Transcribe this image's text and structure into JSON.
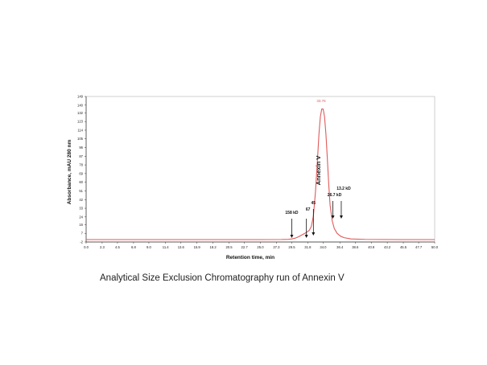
{
  "caption": "Analytical Size Exclusion Chromatography run of Annexin V",
  "chart_data": {
    "type": "line",
    "title": "",
    "xlabel": "Retention time, min",
    "ylabel": "Absorbance, mAU 280 nm",
    "xlim": [
      0.0,
      50.0
    ],
    "ylim": [
      -2,
      149
    ],
    "x_tick_labels": [
      "0.0",
      "2.3",
      "4.5",
      "6.8",
      "9.0",
      "11.4",
      "13.6",
      "15.9",
      "18.2",
      "20.5",
      "22.7",
      "25.0",
      "27.3",
      "29.5",
      "31.8",
      "34.0",
      "36.4",
      "38.6",
      "40.9",
      "43.2",
      "45.5",
      "47.7",
      "50.0"
    ],
    "y_tick_labels": [
      "-2",
      "7",
      "16",
      "24",
      "33",
      "42",
      "51",
      "60",
      "69",
      "78",
      "87",
      "96",
      "105",
      "114",
      "123",
      "132",
      "140",
      "149"
    ],
    "series": [
      {
        "color": "#e05a5a",
        "x": [
          0,
          5,
          10,
          15,
          20,
          25,
          28,
          29,
          29.5,
          30,
          30.5,
          31,
          31.5,
          32,
          32.3,
          32.6,
          32.9,
          33.2,
          33.4,
          33.6,
          33.8,
          34.0,
          34.2,
          34.4,
          34.6,
          34.8,
          35.0,
          35.3,
          35.6,
          36,
          36.5,
          37,
          38,
          40,
          45,
          50
        ],
        "y": [
          0.5,
          0.5,
          0.5,
          0.5,
          0.5,
          0.5,
          0.6,
          0.8,
          1.2,
          2,
          3.5,
          5.5,
          7.5,
          10,
          14,
          25,
          50,
          85,
          110,
          128,
          136,
          136,
          128,
          110,
          85,
          58,
          36,
          20,
          12,
          7,
          4,
          2.5,
          1.2,
          0.7,
          0.5,
          0.5
        ]
      }
    ],
    "peak_label": "33.76",
    "annotations": [
      {
        "text": "158 kD",
        "x": 29.5
      },
      {
        "text": "67",
        "x": 31.6
      },
      {
        "text": "45",
        "x": 32.6
      },
      {
        "text": "26.7 kD",
        "x": 35.4
      },
      {
        "text": "13.2 kD",
        "x": 36.6
      }
    ],
    "peak_name": "Annexin V",
    "grid": false
  }
}
